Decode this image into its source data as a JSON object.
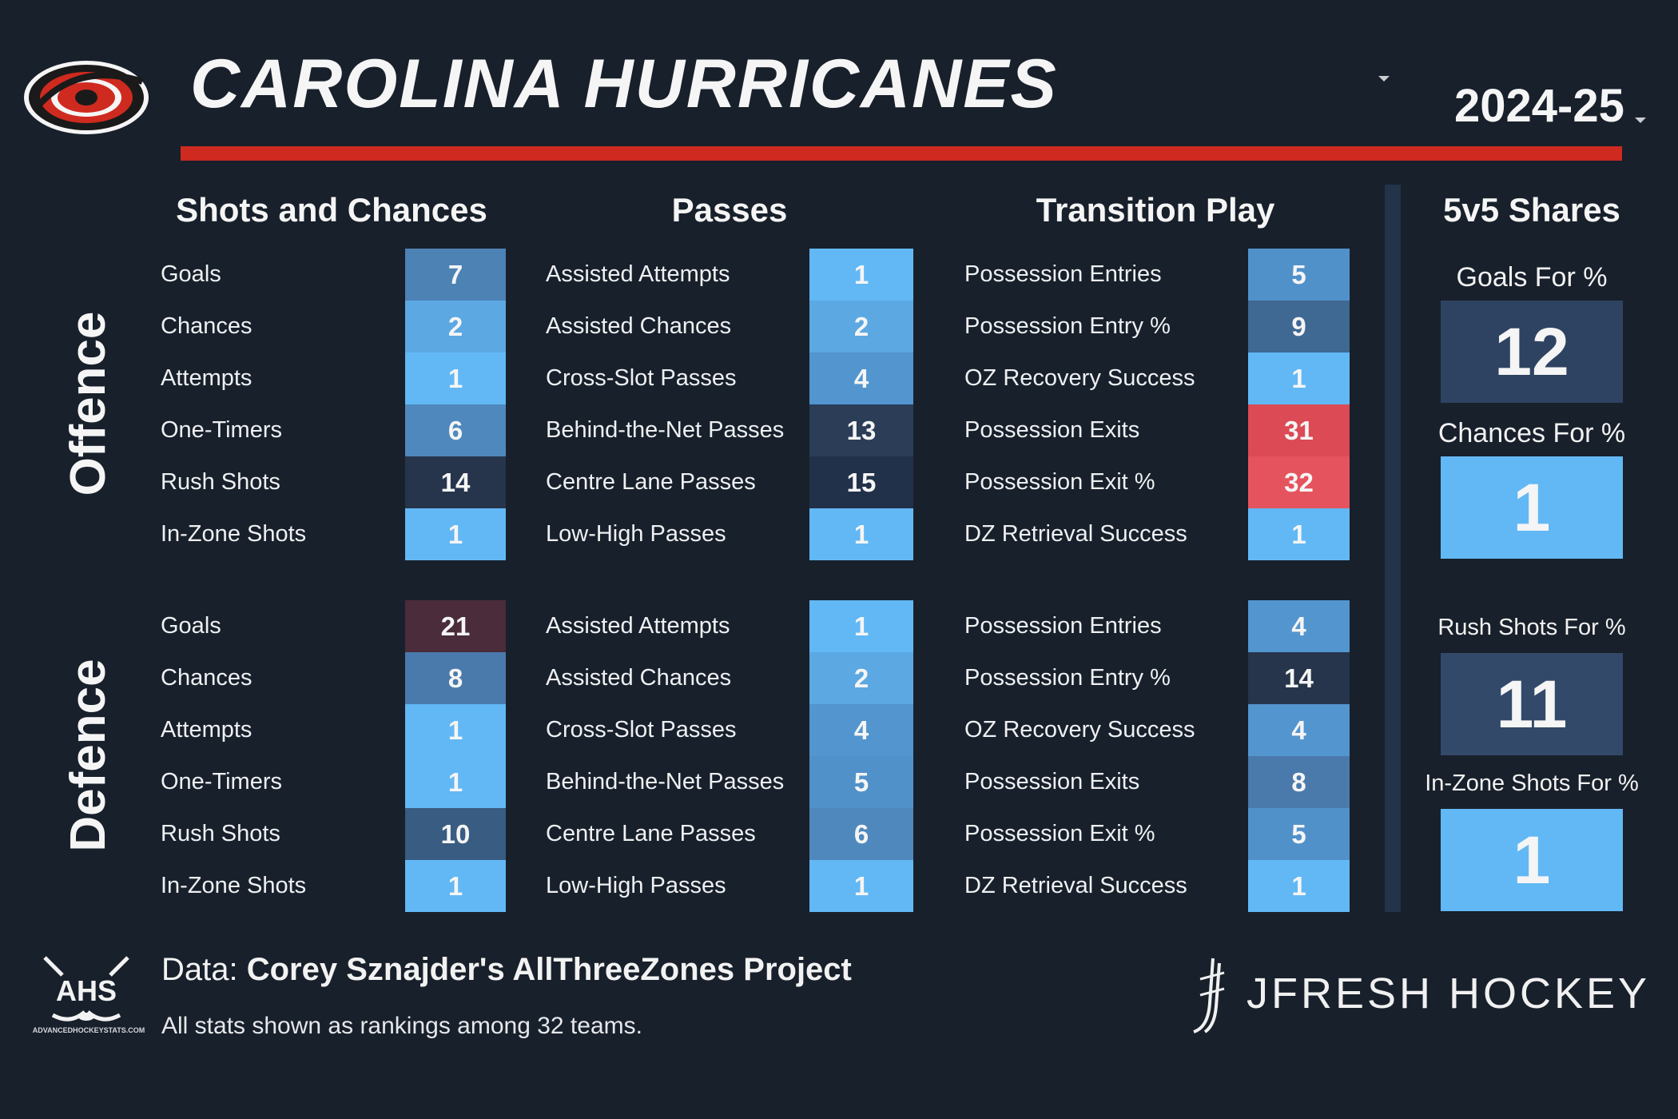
{
  "header": {
    "team": "CAROLINA HURRICANES",
    "season": "2024-25",
    "logo_icon": "hurricanes-logo-icon"
  },
  "sections": {
    "shots": "Shots and Chances",
    "passes": "Passes",
    "transition": "Transition Play",
    "shares": "5v5 Shares"
  },
  "side_labels": {
    "offence": "Offence",
    "defence": "Defence"
  },
  "color_scale": {
    "rank_1": "#5fb6f3",
    "mid": "#4d86ba",
    "dark": "#22324a",
    "neutral_30s": "#e0555f",
    "bad_21": "#4a2b3a"
  },
  "offence": {
    "shots": [
      {
        "label": "Goals",
        "value": "7",
        "color": "#4d82b5"
      },
      {
        "label": "Chances",
        "value": "2",
        "color": "#5ba8e3"
      },
      {
        "label": "Attempts",
        "value": "1",
        "color": "#62b8f5"
      },
      {
        "label": "One-Timers",
        "value": "6",
        "color": "#4f88bd"
      },
      {
        "label": "Rush Shots",
        "value": "14",
        "color": "#26354c"
      },
      {
        "label": "In-Zone Shots",
        "value": "1",
        "color": "#62b8f5"
      }
    ],
    "passes": [
      {
        "label": "Assisted Attempts",
        "value": "1",
        "color": "#62b8f5"
      },
      {
        "label": "Assisted Chances",
        "value": "2",
        "color": "#5ba8e3"
      },
      {
        "label": "Cross-Slot Passes",
        "value": "4",
        "color": "#5395cf"
      },
      {
        "label": "Behind-the-Net Passes",
        "value": "13",
        "color": "#2b3d57"
      },
      {
        "label": "Centre Lane Passes",
        "value": "15",
        "color": "#22314a"
      },
      {
        "label": "Low-High Passes",
        "value": "1",
        "color": "#62b8f5"
      }
    ],
    "transition": [
      {
        "label": "Possession Entries",
        "value": "5",
        "color": "#5191ca"
      },
      {
        "label": "Possession Entry %",
        "value": "9",
        "color": "#3f6892"
      },
      {
        "label": "OZ Recovery Success",
        "value": "1",
        "color": "#62b8f5"
      },
      {
        "label": "Possession Exits",
        "value": "31",
        "color": "#db4a55"
      },
      {
        "label": "Possession Exit %",
        "value": "32",
        "color": "#e5545e"
      },
      {
        "label": "DZ Retrieval Success",
        "value": "1",
        "color": "#62b8f5"
      }
    ]
  },
  "defence": {
    "shots": [
      {
        "label": "Goals",
        "value": "21",
        "color": "#4a2c3b"
      },
      {
        "label": "Chances",
        "value": "8",
        "color": "#4a7aac"
      },
      {
        "label": "Attempts",
        "value": "1",
        "color": "#62b8f5"
      },
      {
        "label": "One-Timers",
        "value": "1",
        "color": "#62b8f5"
      },
      {
        "label": "Rush Shots",
        "value": "10",
        "color": "#385c82"
      },
      {
        "label": "In-Zone Shots",
        "value": "1",
        "color": "#62b8f5"
      }
    ],
    "passes": [
      {
        "label": "Assisted Attempts",
        "value": "1",
        "color": "#62b8f5"
      },
      {
        "label": "Assisted Chances",
        "value": "2",
        "color": "#5ba8e3"
      },
      {
        "label": "Cross-Slot Passes",
        "value": "4",
        "color": "#5395cf"
      },
      {
        "label": "Behind-the-Net Passes",
        "value": "5",
        "color": "#5191ca"
      },
      {
        "label": "Centre Lane Passes",
        "value": "6",
        "color": "#4f88bd"
      },
      {
        "label": "Low-High Passes",
        "value": "1",
        "color": "#62b8f5"
      }
    ],
    "transition": [
      {
        "label": "Possession Entries",
        "value": "4",
        "color": "#5395cf"
      },
      {
        "label": "Possession Entry %",
        "value": "14",
        "color": "#26354c"
      },
      {
        "label": "OZ Recovery Success",
        "value": "4",
        "color": "#5395cf"
      },
      {
        "label": "Possession Exits",
        "value": "8",
        "color": "#4a7aac"
      },
      {
        "label": "Possession Exit %",
        "value": "5",
        "color": "#5191ca"
      },
      {
        "label": "DZ Retrieval Success",
        "value": "1",
        "color": "#62b8f5"
      }
    ]
  },
  "shares": [
    {
      "label": "Goals For %",
      "value": "12",
      "color": "#2e4361"
    },
    {
      "label": "Chances For %",
      "value": "1",
      "color": "#62b8f5"
    },
    {
      "label": "Rush Shots For %",
      "value": "11",
      "color": "#33496a"
    },
    {
      "label": "In-Zone Shots For %",
      "value": "1",
      "color": "#62b8f5"
    }
  ],
  "footer": {
    "ahs_text": "AHS",
    "ahs_url": "ADVANCEDHOCKEYSTATS.COM",
    "data_prefix": "Data: ",
    "data_source": "Corey Sznajder's AllThreeZones Project",
    "note": "All stats shown as rankings among 32 teams.",
    "brand": "JFRESH HOCKEY"
  }
}
